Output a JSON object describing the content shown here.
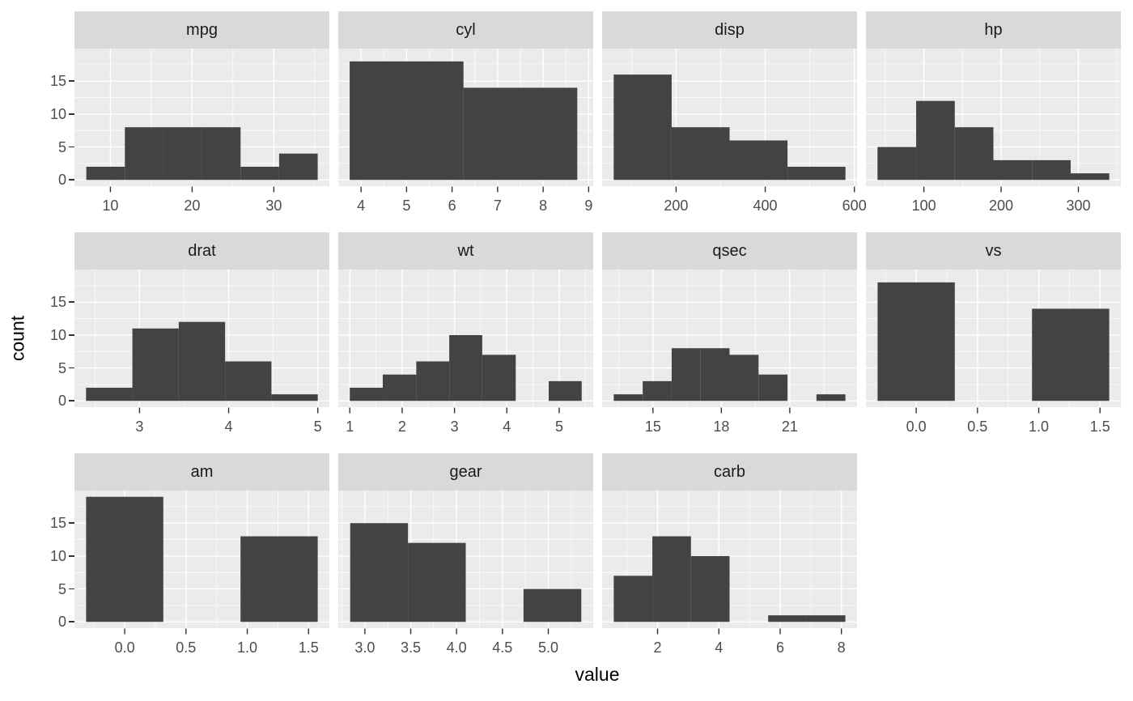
{
  "figure": {
    "x_axis_title": "value",
    "y_axis_title": "count",
    "y_domain": [
      -0.95,
      19.95
    ],
    "y_ticks": [
      {
        "v": 0,
        "label": "0"
      },
      {
        "v": 5,
        "label": "5"
      },
      {
        "v": 10,
        "label": "10"
      },
      {
        "v": 15,
        "label": "15"
      }
    ],
    "y_minor": [
      2.5,
      7.5,
      12.5,
      17.5
    ]
  },
  "style": {
    "bar_fill": "#434343",
    "panel_background": "#EBEBEB",
    "strip_background": "#D9D9D9",
    "grid_color": "#FFFFFF",
    "tick_mark_color": "#333333",
    "tick_label_color": "#4D4D4D",
    "strip_text_color": "#1A1A1A",
    "axis_title_color": "#000000",
    "page_background": "#FFFFFF"
  },
  "chart_data": {
    "type": "bar",
    "subtype": "faceted-histograms",
    "ylabel": "count",
    "xlabel": "value",
    "ylim": [
      -0.95,
      19.95
    ],
    "grid": true,
    "facets_per_row": 4,
    "facets": [
      {
        "label": "mpg",
        "x_domain": [
          5.6,
          36.8
        ],
        "bin_edges": [
          7.05,
          11.77,
          16.49,
          21.21,
          25.93,
          30.65,
          35.37
        ],
        "counts": [
          2,
          8,
          8,
          8,
          2,
          4
        ],
        "x_ticks": [
          {
            "v": 10,
            "label": "10"
          },
          {
            "v": 20,
            "label": "20"
          },
          {
            "v": 30,
            "label": "30"
          }
        ]
      },
      {
        "label": "cyl",
        "x_domain": [
          3.5,
          9.1
        ],
        "bin_edges": [
          3.75,
          6.25,
          8.75
        ],
        "counts": [
          18,
          14
        ],
        "x_ticks": [
          {
            "v": 4,
            "label": "4"
          },
          {
            "v": 5,
            "label": "5"
          },
          {
            "v": 6,
            "label": "6"
          },
          {
            "v": 7,
            "label": "7"
          },
          {
            "v": 8,
            "label": "8"
          },
          {
            "v": 9,
            "label": "9"
          }
        ]
      },
      {
        "label": "disp",
        "x_domain": [
          34,
          606
        ],
        "bin_edges": [
          60,
          190,
          320,
          450,
          580
        ],
        "counts": [
          16,
          8,
          6,
          2
        ],
        "x_ticks": [
          {
            "v": 200,
            "label": "200"
          },
          {
            "v": 400,
            "label": "400"
          },
          {
            "v": 600,
            "label": "600"
          }
        ]
      },
      {
        "label": "hp",
        "x_domain": [
          25,
          355
        ],
        "bin_edges": [
          40,
          90,
          140,
          190,
          240,
          290,
          340
        ],
        "counts": [
          5,
          12,
          8,
          3,
          3,
          1
        ],
        "x_ticks": [
          {
            "v": 100,
            "label": "100"
          },
          {
            "v": 200,
            "label": "200"
          },
          {
            "v": 300,
            "label": "300"
          }
        ]
      },
      {
        "label": "drat",
        "x_domain": [
          2.27,
          5.13
        ],
        "bin_edges": [
          2.4,
          2.92,
          3.44,
          3.96,
          4.48,
          5.0
        ],
        "counts": [
          2,
          11,
          12,
          6,
          1
        ],
        "x_ticks": [
          {
            "v": 3,
            "label": "3"
          },
          {
            "v": 4,
            "label": "4"
          },
          {
            "v": 5,
            "label": "5"
          }
        ]
      },
      {
        "label": "wt",
        "x_domain": [
          0.78,
          5.65
        ],
        "bin_edges": [
          1.0,
          1.63,
          2.27,
          2.9,
          3.53,
          4.17,
          4.8,
          5.43
        ],
        "counts": [
          2,
          4,
          6,
          10,
          7,
          0,
          3
        ],
        "x_ticks": [
          {
            "v": 1,
            "label": "1"
          },
          {
            "v": 2,
            "label": "2"
          },
          {
            "v": 3,
            "label": "3"
          },
          {
            "v": 4,
            "label": "4"
          },
          {
            "v": 5,
            "label": "5"
          }
        ]
      },
      {
        "label": "qsec",
        "x_domain": [
          12.77,
          23.95
        ],
        "bin_edges": [
          13.28,
          14.55,
          15.82,
          17.09,
          18.36,
          19.63,
          20.9,
          22.17,
          23.44
        ],
        "counts": [
          1,
          3,
          8,
          8,
          7,
          4,
          0,
          1
        ],
        "x_ticks": [
          {
            "v": 15,
            "label": "15"
          },
          {
            "v": 18,
            "label": "18"
          },
          {
            "v": 21,
            "label": "21"
          }
        ]
      },
      {
        "label": "vs",
        "x_domain": [
          -0.41,
          1.67
        ],
        "bin_edges": [
          -0.315,
          0.315,
          0.945,
          1.575
        ],
        "counts": [
          18,
          0,
          14
        ],
        "x_ticks": [
          {
            "v": 0,
            "label": "0.0"
          },
          {
            "v": 0.5,
            "label": "0.5"
          },
          {
            "v": 1,
            "label": "1.0"
          },
          {
            "v": 1.5,
            "label": "1.5"
          }
        ]
      },
      {
        "label": "am",
        "x_domain": [
          -0.41,
          1.67
        ],
        "bin_edges": [
          -0.315,
          0.315,
          0.945,
          1.575
        ],
        "counts": [
          19,
          0,
          13
        ],
        "x_ticks": [
          {
            "v": 0,
            "label": "0.0"
          },
          {
            "v": 0.5,
            "label": "0.5"
          },
          {
            "v": 1,
            "label": "1.0"
          },
          {
            "v": 1.5,
            "label": "1.5"
          }
        ]
      },
      {
        "label": "gear",
        "x_domain": [
          2.71,
          5.49
        ],
        "bin_edges": [
          2.84,
          3.47,
          4.1,
          4.73,
          5.36
        ],
        "counts": [
          15,
          12,
          0,
          5
        ],
        "x_ticks": [
          {
            "v": 3,
            "label": "3.0"
          },
          {
            "v": 3.5,
            "label": "3.5"
          },
          {
            "v": 4,
            "label": "4.0"
          },
          {
            "v": 4.5,
            "label": "4.5"
          },
          {
            "v": 5,
            "label": "5.0"
          }
        ]
      },
      {
        "label": "carb",
        "x_domain": [
          0.19,
          8.51
        ],
        "bin_edges": [
          0.57,
          1.83,
          3.09,
          4.35,
          5.61,
          6.87,
          8.13
        ],
        "counts": [
          7,
          13,
          10,
          0,
          1,
          1
        ],
        "x_ticks": [
          {
            "v": 2,
            "label": "2"
          },
          {
            "v": 4,
            "label": "4"
          },
          {
            "v": 6,
            "label": "6"
          },
          {
            "v": 8,
            "label": "8"
          }
        ]
      }
    ]
  }
}
